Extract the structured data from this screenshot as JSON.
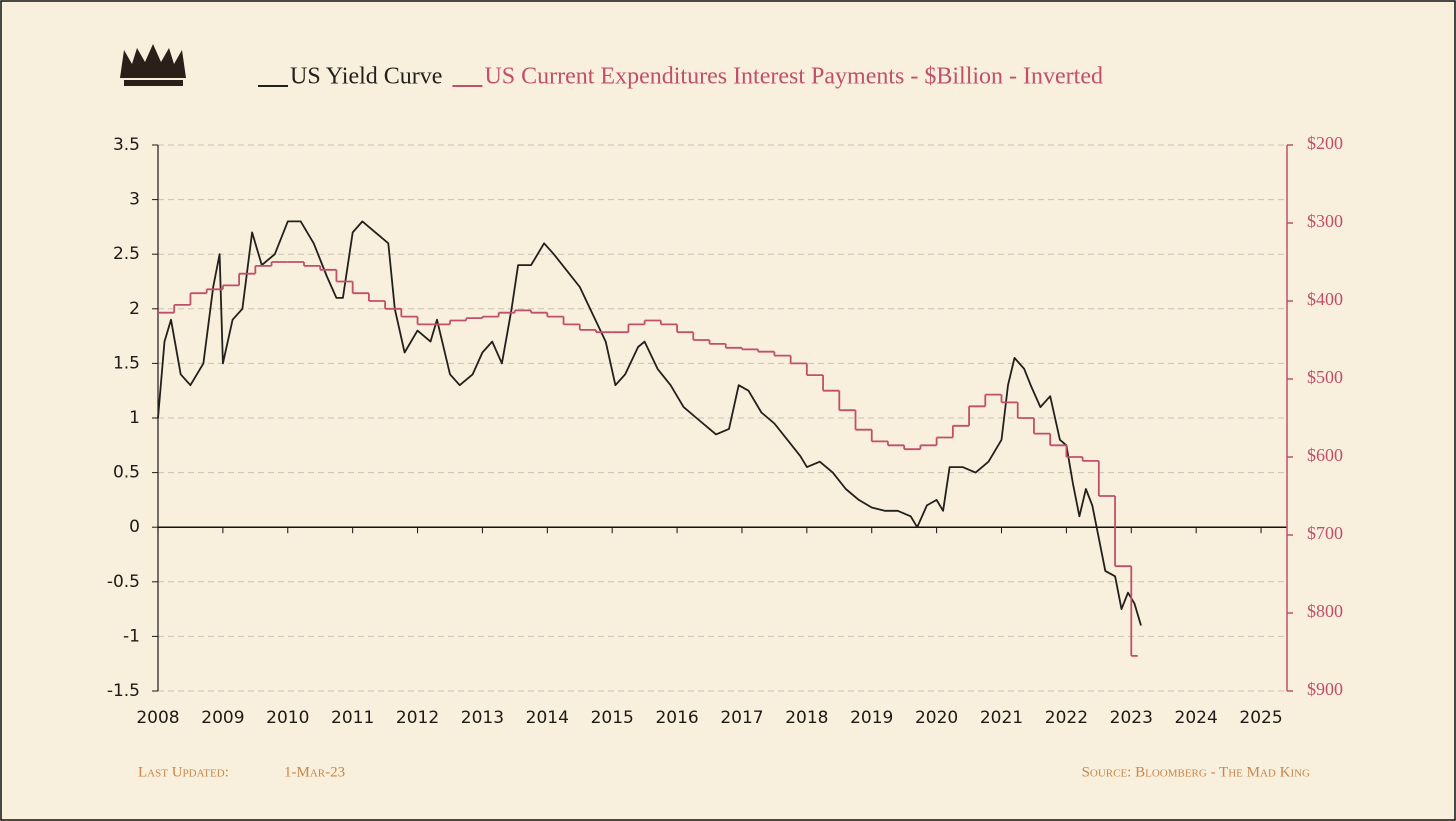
{
  "chart_data": {
    "type": "line",
    "xlim": [
      2008,
      2025.4
    ],
    "xticks": [
      2008,
      2009,
      2010,
      2011,
      2012,
      2013,
      2014,
      2015,
      2016,
      2017,
      2018,
      2019,
      2020,
      2021,
      2022,
      2023,
      2024,
      2025
    ],
    "ylim": [
      -1.5,
      3.5
    ],
    "yticks": [
      -1.5,
      -1,
      -0.5,
      0,
      0.5,
      1,
      1.5,
      2,
      2.5,
      3,
      3.5
    ],
    "y2lim": [
      900,
      200
    ],
    "y2ticks": [
      {
        "value": 900,
        "label": "$900"
      },
      {
        "value": 800,
        "label": "$800"
      },
      {
        "value": 700,
        "label": "$700"
      },
      {
        "value": 600,
        "label": "$600"
      },
      {
        "value": 500,
        "label": "$500"
      },
      {
        "value": 400,
        "label": "$400"
      },
      {
        "value": 300,
        "label": "$300"
      },
      {
        "value": 200,
        "label": "$200"
      }
    ],
    "grid": true,
    "legend": "top",
    "series": [
      {
        "name": "US Yield Curve",
        "color": "#231f1a",
        "x": [
          2008.0,
          2008.1,
          2008.2,
          2008.35,
          2008.5,
          2008.7,
          2008.85,
          2008.95,
          2009.0,
          2009.15,
          2009.3,
          2009.45,
          2009.6,
          2009.8,
          2010.0,
          2010.2,
          2010.4,
          2010.6,
          2010.75,
          2010.85,
          2011.0,
          2011.15,
          2011.35,
          2011.55,
          2011.65,
          2011.8,
          2012.0,
          2012.2,
          2012.3,
          2012.5,
          2012.65,
          2012.85,
          2013.0,
          2013.15,
          2013.3,
          2013.45,
          2013.55,
          2013.75,
          2013.95,
          2014.1,
          2014.3,
          2014.5,
          2014.7,
          2014.9,
          2015.05,
          2015.2,
          2015.4,
          2015.5,
          2015.7,
          2015.9,
          2016.1,
          2016.3,
          2016.5,
          2016.6,
          2016.8,
          2016.95,
          2017.1,
          2017.3,
          2017.5,
          2017.7,
          2017.9,
          2018.0,
          2018.2,
          2018.4,
          2018.6,
          2018.8,
          2019.0,
          2019.2,
          2019.4,
          2019.6,
          2019.7,
          2019.85,
          2020.0,
          2020.1,
          2020.2,
          2020.4,
          2020.6,
          2020.8,
          2021.0,
          2021.1,
          2021.2,
          2021.35,
          2021.45,
          2021.6,
          2021.75,
          2021.9,
          2022.0,
          2022.1,
          2022.2,
          2022.3,
          2022.4,
          2022.5,
          2022.6,
          2022.75,
          2022.85,
          2022.95,
          2023.05,
          2023.15
        ],
        "values": [
          1.0,
          1.7,
          1.9,
          1.4,
          1.3,
          1.5,
          2.2,
          2.5,
          1.5,
          1.9,
          2.0,
          2.7,
          2.4,
          2.5,
          2.8,
          2.8,
          2.6,
          2.3,
          2.1,
          2.1,
          2.7,
          2.8,
          2.7,
          2.6,
          2.0,
          1.6,
          1.8,
          1.7,
          1.9,
          1.4,
          1.3,
          1.4,
          1.6,
          1.7,
          1.5,
          2.0,
          2.4,
          2.4,
          2.6,
          2.5,
          2.35,
          2.2,
          1.95,
          1.7,
          1.3,
          1.4,
          1.65,
          1.7,
          1.45,
          1.3,
          1.1,
          1.0,
          0.9,
          0.85,
          0.9,
          1.3,
          1.25,
          1.05,
          0.95,
          0.8,
          0.65,
          0.55,
          0.6,
          0.5,
          0.35,
          0.25,
          0.18,
          0.15,
          0.15,
          0.1,
          0.0,
          0.2,
          0.25,
          0.15,
          0.55,
          0.55,
          0.5,
          0.6,
          0.8,
          1.3,
          1.55,
          1.45,
          1.3,
          1.1,
          1.2,
          0.8,
          0.75,
          0.4,
          0.1,
          0.35,
          0.2,
          -0.1,
          -0.4,
          -0.45,
          -0.75,
          -0.6,
          -0.7,
          -0.9
        ]
      },
      {
        "name": "US Current Expenditures Interest Payments - $Billion - Inverted",
        "color": "#c0506a",
        "axis": "y2",
        "drawstyle": "steps-post",
        "x": [
          2008.0,
          2008.25,
          2008.5,
          2008.75,
          2009.0,
          2009.25,
          2009.5,
          2009.75,
          2010.0,
          2010.25,
          2010.5,
          2010.75,
          2011.0,
          2011.25,
          2011.5,
          2011.75,
          2012.0,
          2012.25,
          2012.5,
          2012.75,
          2013.0,
          2013.25,
          2013.5,
          2013.75,
          2014.0,
          2014.25,
          2014.5,
          2014.75,
          2015.0,
          2015.25,
          2015.5,
          2015.75,
          2016.0,
          2016.25,
          2016.5,
          2016.75,
          2017.0,
          2017.25,
          2017.5,
          2017.75,
          2018.0,
          2018.25,
          2018.5,
          2018.75,
          2019.0,
          2019.25,
          2019.5,
          2019.75,
          2020.0,
          2020.25,
          2020.5,
          2020.75,
          2021.0,
          2021.25,
          2021.5,
          2021.75,
          2022.0,
          2022.25,
          2022.5,
          2022.75,
          2023.0
        ],
        "values": [
          415,
          405,
          390,
          385,
          380,
          365,
          355,
          350,
          350,
          355,
          360,
          375,
          390,
          400,
          410,
          420,
          430,
          430,
          425,
          422,
          420,
          415,
          412,
          415,
          420,
          430,
          437,
          440,
          440,
          430,
          425,
          430,
          440,
          450,
          455,
          460,
          462,
          465,
          470,
          480,
          495,
          515,
          540,
          565,
          580,
          585,
          590,
          585,
          575,
          560,
          535,
          520,
          530,
          550,
          570,
          585,
          600,
          605,
          650,
          740,
          855
        ]
      }
    ]
  },
  "footer": {
    "updated_label": "Last Updated:",
    "updated": "1-Mar-23",
    "source": "Source: Bloomberg - The Mad King"
  }
}
